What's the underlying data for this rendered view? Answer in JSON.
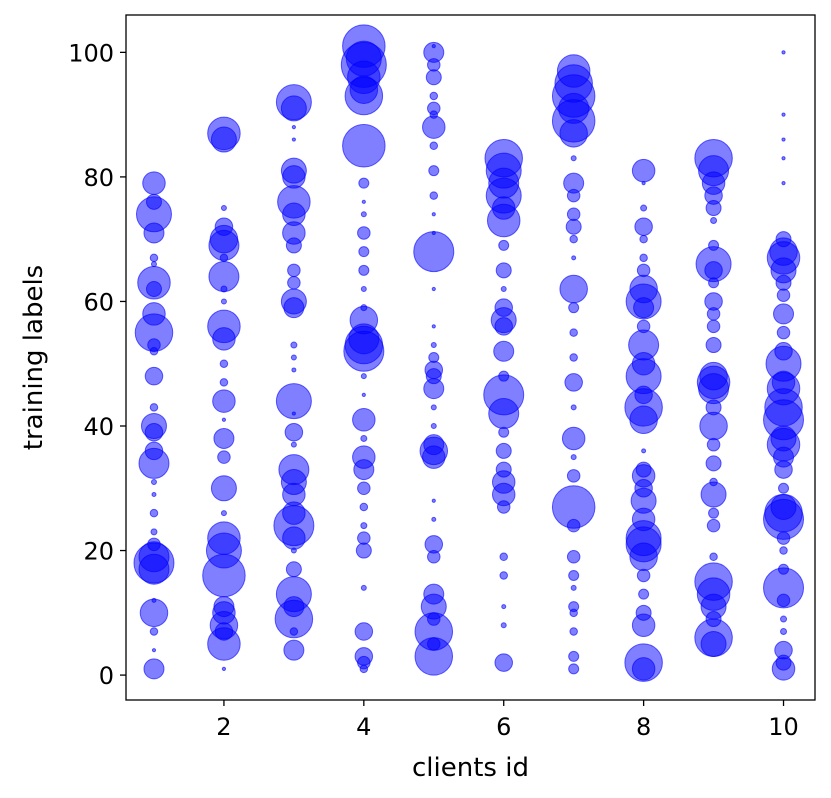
{
  "chart_data": {
    "type": "scatter",
    "title": "",
    "xlabel": "clients id",
    "ylabel": "training labels",
    "xlim": [
      0.6,
      10.45
    ],
    "ylim": [
      -4,
      106
    ],
    "xticks": [
      2,
      4,
      6,
      8,
      10
    ],
    "yticks": [
      0,
      20,
      40,
      60,
      80,
      100
    ],
    "grid": false,
    "legend": "none",
    "marker_color": "#0000ff",
    "marker_alpha": 0.5,
    "size_note": "marker area proportional to sample count of the label on that client",
    "clients": [
      {
        "client": 1,
        "points": [
          [
            79,
            0.45
          ],
          [
            76,
            0.3
          ],
          [
            74,
            0.7
          ],
          [
            71,
            0.4
          ],
          [
            67,
            0.15
          ],
          [
            66,
            0.1
          ],
          [
            63,
            0.65
          ],
          [
            62,
            0.3
          ],
          [
            58,
            0.45
          ],
          [
            55,
            0.75
          ],
          [
            53,
            0.25
          ],
          [
            52,
            0.15
          ],
          [
            48,
            0.35
          ],
          [
            43,
            0.15
          ],
          [
            40,
            0.5
          ],
          [
            39,
            0.35
          ],
          [
            36,
            0.35
          ],
          [
            34,
            0.6
          ],
          [
            31,
            0.1
          ],
          [
            29,
            0.08
          ],
          [
            26,
            0.15
          ],
          [
            23,
            0.12
          ],
          [
            21,
            0.25
          ],
          [
            19,
            0.6
          ],
          [
            18,
            0.8
          ],
          [
            17,
            0.6
          ],
          [
            12,
            0.08
          ],
          [
            10,
            0.55
          ],
          [
            7,
            0.15
          ],
          [
            4,
            0.05
          ],
          [
            1,
            0.4
          ]
        ]
      },
      {
        "client": 2,
        "points": [
          [
            87,
            0.65
          ],
          [
            86,
            0.5
          ],
          [
            75,
            0.1
          ],
          [
            72,
            0.35
          ],
          [
            70,
            0.55
          ],
          [
            69,
            0.6
          ],
          [
            67,
            0.15
          ],
          [
            64,
            0.6
          ],
          [
            62,
            0.12
          ],
          [
            60,
            0.1
          ],
          [
            56,
            0.65
          ],
          [
            54,
            0.45
          ],
          [
            50,
            0.15
          ],
          [
            47,
            0.15
          ],
          [
            44,
            0.45
          ],
          [
            41,
            0.05
          ],
          [
            38,
            0.4
          ],
          [
            35,
            0.25
          ],
          [
            30,
            0.5
          ],
          [
            26,
            0.1
          ],
          [
            22,
            0.65
          ],
          [
            20,
            0.7
          ],
          [
            16,
            0.85
          ],
          [
            11,
            0.4
          ],
          [
            10,
            0.45
          ],
          [
            8,
            0.55
          ],
          [
            7,
            0.35
          ],
          [
            5,
            0.65
          ],
          [
            1,
            0.05
          ]
        ]
      },
      {
        "client": 3,
        "points": [
          [
            92,
            0.7
          ],
          [
            91,
            0.5
          ],
          [
            88,
            0.05
          ],
          [
            86,
            0.05
          ],
          [
            81,
            0.5
          ],
          [
            80,
            0.45
          ],
          [
            76,
            0.65
          ],
          [
            74,
            0.45
          ],
          [
            71,
            0.45
          ],
          [
            69,
            0.3
          ],
          [
            65,
            0.25
          ],
          [
            63,
            0.25
          ],
          [
            60,
            0.5
          ],
          [
            59,
            0.4
          ],
          [
            53,
            0.12
          ],
          [
            51,
            0.1
          ],
          [
            49,
            0.08
          ],
          [
            44,
            0.7
          ],
          [
            42,
            0.05
          ],
          [
            39,
            0.35
          ],
          [
            37,
            0.1
          ],
          [
            33,
            0.6
          ],
          [
            31,
            0.5
          ],
          [
            29,
            0.45
          ],
          [
            26,
            0.45
          ],
          [
            24,
            0.8
          ],
          [
            22,
            0.45
          ],
          [
            20,
            0.1
          ],
          [
            17,
            0.3
          ],
          [
            13,
            0.7
          ],
          [
            11,
            0.4
          ],
          [
            9,
            0.75
          ],
          [
            7,
            0.15
          ],
          [
            4,
            0.4
          ]
        ]
      },
      {
        "client": 4,
        "points": [
          [
            101,
            0.85
          ],
          [
            99,
            0.7
          ],
          [
            98,
            0.9
          ],
          [
            96,
            0.65
          ],
          [
            94,
            0.55
          ],
          [
            93,
            0.75
          ],
          [
            85,
            0.85
          ],
          [
            79,
            0.2
          ],
          [
            76,
            0.05
          ],
          [
            74,
            0.1
          ],
          [
            71,
            0.25
          ],
          [
            68,
            0.2
          ],
          [
            65,
            0.2
          ],
          [
            62,
            0.1
          ],
          [
            59,
            0.12
          ],
          [
            57,
            0.55
          ],
          [
            54,
            0.6
          ],
          [
            53,
            0.75
          ],
          [
            52,
            0.8
          ],
          [
            48,
            0.1
          ],
          [
            45,
            0.05
          ],
          [
            41,
            0.45
          ],
          [
            38,
            0.12
          ],
          [
            35,
            0.45
          ],
          [
            33,
            0.4
          ],
          [
            30,
            0.25
          ],
          [
            27,
            0.15
          ],
          [
            24,
            0.12
          ],
          [
            22,
            0.25
          ],
          [
            20,
            0.3
          ],
          [
            14,
            0.1
          ],
          [
            7,
            0.35
          ],
          [
            3,
            0.35
          ],
          [
            2,
            0.25
          ],
          [
            1,
            0.15
          ]
        ]
      },
      {
        "client": 5,
        "points": [
          [
            101,
            0.05
          ],
          [
            100,
            0.4
          ],
          [
            98,
            0.25
          ],
          [
            96,
            0.3
          ],
          [
            93,
            0.15
          ],
          [
            91,
            0.25
          ],
          [
            90,
            0.15
          ],
          [
            88,
            0.45
          ],
          [
            85,
            0.15
          ],
          [
            81,
            0.2
          ],
          [
            77,
            0.15
          ],
          [
            74,
            0.05
          ],
          [
            71,
            0.05
          ],
          [
            68,
            0.8
          ],
          [
            62,
            0.05
          ],
          [
            56,
            0.05
          ],
          [
            53,
            0.1
          ],
          [
            51,
            0.2
          ],
          [
            49,
            0.35
          ],
          [
            48,
            0.3
          ],
          [
            46,
            0.4
          ],
          [
            43,
            0.1
          ],
          [
            40,
            0.1
          ],
          [
            37,
            0.4
          ],
          [
            36,
            0.55
          ],
          [
            35,
            0.45
          ],
          [
            28,
            0.05
          ],
          [
            25,
            0.08
          ],
          [
            21,
            0.35
          ],
          [
            19,
            0.25
          ],
          [
            13,
            0.4
          ],
          [
            11,
            0.5
          ],
          [
            9,
            0.25
          ],
          [
            7,
            0.75
          ],
          [
            5,
            0.25
          ],
          [
            3,
            0.75
          ]
        ]
      },
      {
        "client": 6,
        "points": [
          [
            83,
            0.75
          ],
          [
            81,
            0.7
          ],
          [
            79,
            0.6
          ],
          [
            77,
            0.7
          ],
          [
            75,
            0.45
          ],
          [
            73,
            0.65
          ],
          [
            69,
            0.2
          ],
          [
            65,
            0.3
          ],
          [
            62,
            0.1
          ],
          [
            59,
            0.35
          ],
          [
            57,
            0.5
          ],
          [
            56,
            0.35
          ],
          [
            52,
            0.4
          ],
          [
            48,
            0.2
          ],
          [
            45,
            0.8
          ],
          [
            42,
            0.6
          ],
          [
            39,
            0.2
          ],
          [
            36,
            0.3
          ],
          [
            33,
            0.3
          ],
          [
            31,
            0.45
          ],
          [
            29,
            0.45
          ],
          [
            27,
            0.25
          ],
          [
            19,
            0.15
          ],
          [
            16,
            0.15
          ],
          [
            11,
            0.08
          ],
          [
            8,
            0.1
          ],
          [
            2,
            0.35
          ]
        ]
      },
      {
        "client": 7,
        "points": [
          [
            97,
            0.65
          ],
          [
            95,
            0.75
          ],
          [
            93,
            0.85
          ],
          [
            91,
            0.6
          ],
          [
            89,
            0.85
          ],
          [
            87,
            0.55
          ],
          [
            83,
            0.1
          ],
          [
            79,
            0.4
          ],
          [
            77,
            0.25
          ],
          [
            74,
            0.25
          ],
          [
            72,
            0.3
          ],
          [
            70,
            0.15
          ],
          [
            67,
            0.08
          ],
          [
            62,
            0.55
          ],
          [
            59,
            0.2
          ],
          [
            55,
            0.15
          ],
          [
            51,
            0.15
          ],
          [
            47,
            0.35
          ],
          [
            43,
            0.1
          ],
          [
            38,
            0.45
          ],
          [
            35,
            0.1
          ],
          [
            32,
            0.25
          ],
          [
            27,
            0.85
          ],
          [
            24,
            0.25
          ],
          [
            19,
            0.25
          ],
          [
            16,
            0.2
          ],
          [
            14,
            0.1
          ],
          [
            11,
            0.2
          ],
          [
            10,
            0.15
          ],
          [
            7,
            0.15
          ],
          [
            3,
            0.2
          ],
          [
            1,
            0.2
          ]
        ]
      },
      {
        "client": 8,
        "points": [
          [
            81,
            0.45
          ],
          [
            79,
            0.05
          ],
          [
            75,
            0.12
          ],
          [
            72,
            0.35
          ],
          [
            70,
            0.15
          ],
          [
            67,
            0.15
          ],
          [
            65,
            0.25
          ],
          [
            62,
            0.55
          ],
          [
            60,
            0.7
          ],
          [
            59,
            0.4
          ],
          [
            56,
            0.25
          ],
          [
            53,
            0.6
          ],
          [
            50,
            0.45
          ],
          [
            48,
            0.7
          ],
          [
            45,
            0.35
          ],
          [
            43,
            0.75
          ],
          [
            41,
            0.55
          ],
          [
            36,
            0.08
          ],
          [
            33,
            0.3
          ],
          [
            32,
            0.45
          ],
          [
            30,
            0.35
          ],
          [
            28,
            0.5
          ],
          [
            25,
            0.45
          ],
          [
            22,
            0.7
          ],
          [
            21,
            0.7
          ],
          [
            19,
            0.55
          ],
          [
            16,
            0.25
          ],
          [
            13,
            0.2
          ],
          [
            10,
            0.3
          ],
          [
            8,
            0.45
          ],
          [
            2,
            0.75
          ],
          [
            1,
            0.45
          ]
        ]
      },
      {
        "client": 9,
        "points": [
          [
            83,
            0.75
          ],
          [
            81,
            0.6
          ],
          [
            79,
            0.45
          ],
          [
            77,
            0.35
          ],
          [
            75,
            0.3
          ],
          [
            73,
            0.12
          ],
          [
            69,
            0.2
          ],
          [
            66,
            0.7
          ],
          [
            65,
            0.35
          ],
          [
            63,
            0.2
          ],
          [
            60,
            0.35
          ],
          [
            58,
            0.25
          ],
          [
            56,
            0.25
          ],
          [
            53,
            0.3
          ],
          [
            48,
            0.55
          ],
          [
            47,
            0.65
          ],
          [
            46,
            0.6
          ],
          [
            43,
            0.3
          ],
          [
            40,
            0.55
          ],
          [
            37,
            0.25
          ],
          [
            34,
            0.3
          ],
          [
            31,
            0.15
          ],
          [
            29,
            0.5
          ],
          [
            26,
            0.2
          ],
          [
            24,
            0.25
          ],
          [
            19,
            0.15
          ],
          [
            15,
            0.75
          ],
          [
            13,
            0.65
          ],
          [
            11,
            0.5
          ],
          [
            9,
            0.3
          ],
          [
            6,
            0.75
          ],
          [
            5,
            0.5
          ]
        ]
      },
      {
        "client": 10,
        "points": [
          [
            100,
            0.05
          ],
          [
            90,
            0.05
          ],
          [
            86,
            0.05
          ],
          [
            83,
            0.05
          ],
          [
            79,
            0.05
          ],
          [
            70,
            0.3
          ],
          [
            68,
            0.55
          ],
          [
            67,
            0.65
          ],
          [
            65,
            0.5
          ],
          [
            63,
            0.3
          ],
          [
            61,
            0.25
          ],
          [
            58,
            0.4
          ],
          [
            55,
            0.25
          ],
          [
            52,
            0.35
          ],
          [
            50,
            0.7
          ],
          [
            47,
            0.45
          ],
          [
            46,
            0.65
          ],
          [
            43,
            0.75
          ],
          [
            41,
            0.8
          ],
          [
            38,
            0.5
          ],
          [
            37,
            0.65
          ],
          [
            35,
            0.4
          ],
          [
            33,
            0.35
          ],
          [
            30,
            0.2
          ],
          [
            27,
            0.5
          ],
          [
            26,
            0.75
          ],
          [
            25,
            0.8
          ],
          [
            22,
            0.25
          ],
          [
            20,
            0.15
          ],
          [
            17,
            0.2
          ],
          [
            14,
            0.8
          ],
          [
            12,
            0.25
          ],
          [
            9,
            0.12
          ],
          [
            7,
            0.12
          ],
          [
            4,
            0.35
          ],
          [
            2,
            0.3
          ],
          [
            1,
            0.45
          ]
        ]
      }
    ]
  }
}
